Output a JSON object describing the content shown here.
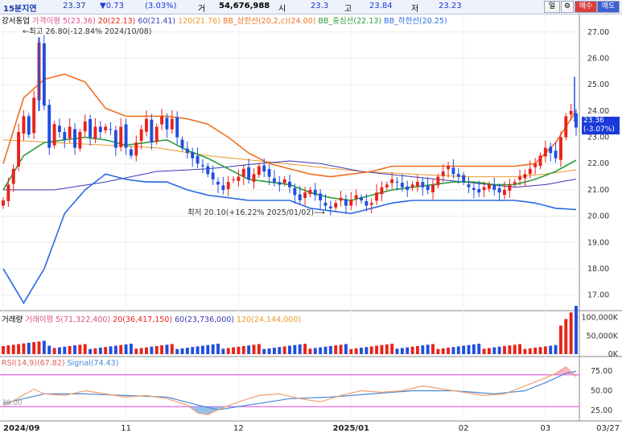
{
  "header": {
    "timeframe": "15분지연",
    "price": "23.37",
    "change": "▼0.73",
    "change_pct": "(3.03%)",
    "volume_label": "거",
    "volume": "54,676,988",
    "open_label": "시",
    "open": "23.3",
    "high_label": "고",
    "high": "23.84",
    "low_label": "저",
    "low": "23.23",
    "period_button": "일",
    "settings_icon": "gear-icon",
    "buy_button": "매수",
    "sell_button": "매도"
  },
  "price_legend": {
    "stock": "강서동업",
    "ma_group": "가격이평",
    "ma5": "5(23.36)",
    "ma20": "20(22.13)",
    "ma60": "60(21.41)",
    "ma120": "120(21.76)",
    "bb_upper": "BB_상한선(20,2,c)(24.00)",
    "bb_mid": "BB_중심선(22.13)",
    "bb_lower": "BB_하한선(20.25)"
  },
  "annotations": {
    "high": "최고 26.80(-12.84% 2024/10/08)",
    "low": "최저 20.10(+16.22% 2025/01/02)",
    "price_tag": "23.36",
    "price_tag_pct": "(-3.07%)"
  },
  "volume_legend": {
    "title": "거래량",
    "ma_group": "거래이평",
    "ma5": "5(71,322,400)",
    "ma20": "20(36,417,150)",
    "ma60": "60(23,736,000)",
    "ma120": "120(24,144,000)"
  },
  "rsi_legend": {
    "rsi": "RSI(14,9)(67.82)",
    "signal": "Signal(74.43)"
  },
  "axes": {
    "price_ticks": [
      "27.00",
      "26.00",
      "25.00",
      "24.00",
      "23.00",
      "22.00",
      "21.00",
      "20.00",
      "19.00",
      "18.00",
      "17.00"
    ],
    "volume_ticks": [
      "100,000K",
      "50,000K",
      "0K"
    ],
    "rsi_ticks": [
      "75.00",
      "50.00",
      "25.00"
    ],
    "rsi_left_label": "30.00",
    "x_labels": [
      "2024/09",
      "11",
      "12",
      "2025/01",
      "02",
      "03"
    ],
    "x_end": "03/27"
  },
  "colors": {
    "up": "#e8231a",
    "down": "#1f4fe0",
    "ma5": "#d94f8a",
    "ma20": "#2a9d3a",
    "ma60": "#3a3ab8",
    "ma120": "#e89a2a",
    "bb_upper": "#f07020",
    "bb_mid": "#2a9d3a",
    "bb_lower": "#2a6ae0",
    "rsi": "#f0a070",
    "signal": "#4a88d8"
  },
  "chart_data": [
    {
      "type": "candlestick",
      "title": "강서동업",
      "x_range": [
        "2024/09",
        "2025/03/27"
      ],
      "ylim": [
        16.5,
        27.3
      ],
      "ohlc_close_trace": [
        [
          0,
          20.6
        ],
        [
          2,
          21.8
        ],
        [
          3,
          23.2
        ],
        [
          4,
          23.8
        ],
        [
          5,
          23.1
        ],
        [
          6,
          24.5
        ],
        [
          7,
          26.6
        ],
        [
          8,
          24.2
        ],
        [
          9,
          22.6
        ],
        [
          10,
          23.5
        ],
        [
          11,
          23.2
        ],
        [
          12,
          22.9
        ],
        [
          13,
          23.4
        ],
        [
          14,
          22.6
        ],
        [
          15,
          23.2
        ],
        [
          16,
          23.6
        ],
        [
          17,
          23.0
        ],
        [
          18,
          23.4
        ],
        [
          19,
          23.2
        ],
        [
          20,
          23.4
        ],
        [
          21,
          23.3
        ],
        [
          22,
          22.6
        ],
        [
          23,
          23.4
        ],
        [
          24,
          22.6
        ],
        [
          25,
          22.3
        ],
        [
          26,
          22.8
        ],
        [
          27,
          23.3
        ],
        [
          28,
          23.7
        ],
        [
          29,
          22.8
        ],
        [
          30,
          23.4
        ],
        [
          31,
          23.8
        ],
        [
          32,
          23.3
        ],
        [
          33,
          23.7
        ],
        [
          34,
          23.0
        ],
        [
          35,
          22.6
        ],
        [
          36,
          22.4
        ],
        [
          37,
          22.2
        ],
        [
          38,
          22.0
        ],
        [
          39,
          21.9
        ],
        [
          40,
          21.6
        ],
        [
          41,
          21.4
        ],
        [
          42,
          21.2
        ],
        [
          43,
          21.0
        ],
        [
          44,
          21.3
        ],
        [
          45,
          21.4
        ],
        [
          46,
          21.5
        ],
        [
          47,
          21.8
        ],
        [
          48,
          21.4
        ],
        [
          49,
          21.6
        ],
        [
          50,
          21.9
        ],
        [
          51,
          21.7
        ],
        [
          52,
          21.5
        ],
        [
          53,
          21.3
        ],
        [
          54,
          21.2
        ],
        [
          55,
          21.4
        ],
        [
          56,
          21.1
        ],
        [
          57,
          20.8
        ],
        [
          58,
          20.6
        ],
        [
          59,
          20.9
        ],
        [
          60,
          21.0
        ],
        [
          61,
          20.8
        ],
        [
          62,
          20.6
        ],
        [
          63,
          20.4
        ],
        [
          64,
          20.3
        ],
        [
          65,
          20.5
        ],
        [
          66,
          20.7
        ],
        [
          67,
          20.4
        ],
        [
          68,
          20.6
        ],
        [
          69,
          20.8
        ],
        [
          70,
          20.6
        ],
        [
          71,
          20.4
        ],
        [
          72,
          20.5
        ],
        [
          73,
          20.9
        ],
        [
          74,
          21.1
        ],
        [
          75,
          21.2
        ],
        [
          76,
          21.4
        ],
        [
          77,
          21.3
        ],
        [
          78,
          21.1
        ],
        [
          79,
          21.0
        ],
        [
          80,
          21.2
        ],
        [
          81,
          21.3
        ],
        [
          82,
          21.1
        ],
        [
          83,
          21.0
        ],
        [
          84,
          21.2
        ],
        [
          85,
          21.5
        ],
        [
          86,
          21.7
        ],
        [
          87,
          21.9
        ],
        [
          88,
          21.6
        ],
        [
          89,
          21.5
        ],
        [
          90,
          21.3
        ],
        [
          91,
          21.1
        ],
        [
          92,
          21.0
        ],
        [
          93,
          20.9
        ],
        [
          94,
          21.1
        ],
        [
          95,
          21.2
        ],
        [
          96,
          21.0
        ],
        [
          97,
          20.9
        ],
        [
          98,
          21.0
        ],
        [
          99,
          21.2
        ],
        [
          100,
          21.3
        ],
        [
          101,
          21.5
        ],
        [
          102,
          21.6
        ],
        [
          103,
          21.8
        ],
        [
          104,
          22.0
        ],
        [
          105,
          22.3
        ],
        [
          106,
          22.6
        ],
        [
          107,
          22.4
        ],
        [
          108,
          22.2
        ],
        [
          109,
          23.0
        ],
        [
          110,
          23.8
        ],
        [
          111,
          24.0
        ],
        [
          112,
          23.37
        ]
      ],
      "bb_upper": [
        [
          0,
          22.0
        ],
        [
          4,
          24.5
        ],
        [
          8,
          25.2
        ],
        [
          12,
          25.4
        ],
        [
          16,
          25.1
        ],
        [
          20,
          24.1
        ],
        [
          24,
          23.8
        ],
        [
          28,
          23.8
        ],
        [
          32,
          23.8
        ],
        [
          36,
          23.7
        ],
        [
          40,
          23.5
        ],
        [
          44,
          23.0
        ],
        [
          48,
          22.4
        ],
        [
          52,
          22.0
        ],
        [
          56,
          21.8
        ],
        [
          60,
          21.6
        ],
        [
          64,
          21.5
        ],
        [
          68,
          21.6
        ],
        [
          72,
          21.7
        ],
        [
          76,
          21.9
        ],
        [
          80,
          21.9
        ],
        [
          84,
          21.9
        ],
        [
          88,
          21.9
        ],
        [
          92,
          21.9
        ],
        [
          96,
          21.9
        ],
        [
          100,
          21.9
        ],
        [
          104,
          22.0
        ],
        [
          108,
          22.8
        ],
        [
          112,
          24.0
        ]
      ],
      "bb_mid": [
        [
          0,
          21.0
        ],
        [
          4,
          22.3
        ],
        [
          8,
          22.8
        ],
        [
          12,
          22.9
        ],
        [
          16,
          23.0
        ],
        [
          20,
          22.9
        ],
        [
          24,
          22.7
        ],
        [
          28,
          22.8
        ],
        [
          32,
          22.9
        ],
        [
          36,
          22.5
        ],
        [
          40,
          22.2
        ],
        [
          44,
          21.8
        ],
        [
          48,
          21.4
        ],
        [
          52,
          21.3
        ],
        [
          56,
          21.2
        ],
        [
          60,
          20.9
        ],
        [
          64,
          20.7
        ],
        [
          68,
          20.6
        ],
        [
          72,
          20.8
        ],
        [
          76,
          21.0
        ],
        [
          80,
          21.1
        ],
        [
          84,
          21.2
        ],
        [
          88,
          21.3
        ],
        [
          92,
          21.3
        ],
        [
          96,
          21.2
        ],
        [
          100,
          21.2
        ],
        [
          104,
          21.4
        ],
        [
          108,
          21.7
        ],
        [
          112,
          22.13
        ]
      ],
      "bb_lower": [
        [
          0,
          18.0
        ],
        [
          4,
          16.7
        ],
        [
          8,
          18.0
        ],
        [
          12,
          20.1
        ],
        [
          16,
          21.0
        ],
        [
          20,
          21.6
        ],
        [
          24,
          21.4
        ],
        [
          28,
          21.3
        ],
        [
          32,
          21.3
        ],
        [
          36,
          21.0
        ],
        [
          40,
          20.8
        ],
        [
          44,
          20.7
        ],
        [
          48,
          20.6
        ],
        [
          52,
          20.6
        ],
        [
          56,
          20.6
        ],
        [
          60,
          20.3
        ],
        [
          64,
          20.2
        ],
        [
          68,
          20.1
        ],
        [
          72,
          20.3
        ],
        [
          76,
          20.5
        ],
        [
          80,
          20.6
        ],
        [
          84,
          20.6
        ],
        [
          88,
          20.6
        ],
        [
          92,
          20.6
        ],
        [
          96,
          20.6
        ],
        [
          100,
          20.6
        ],
        [
          104,
          20.5
        ],
        [
          108,
          20.3
        ],
        [
          112,
          20.25
        ]
      ],
      "ma60": [
        [
          0,
          21.0
        ],
        [
          10,
          21.0
        ],
        [
          20,
          21.3
        ],
        [
          30,
          21.7
        ],
        [
          40,
          21.8
        ],
        [
          50,
          22.0
        ],
        [
          56,
          22.1
        ],
        [
          62,
          22.0
        ],
        [
          70,
          21.7
        ],
        [
          80,
          21.5
        ],
        [
          90,
          21.3
        ],
        [
          100,
          21.1
        ],
        [
          106,
          21.2
        ],
        [
          112,
          21.41
        ]
      ],
      "ma120": [
        [
          0,
          22.9
        ],
        [
          10,
          22.8
        ],
        [
          20,
          22.7
        ],
        [
          30,
          22.6
        ],
        [
          40,
          22.3
        ],
        [
          50,
          22.1
        ],
        [
          60,
          21.9
        ],
        [
          70,
          21.7
        ],
        [
          80,
          21.6
        ],
        [
          90,
          21.5
        ],
        [
          100,
          21.5
        ],
        [
          106,
          21.6
        ],
        [
          112,
          21.76
        ]
      ]
    },
    {
      "type": "bar",
      "title": "거래량",
      "ylim": [
        0,
        110000000
      ],
      "ticks": [
        "100,000K",
        "50,000K",
        "0K"
      ]
    },
    {
      "type": "line",
      "title": "RSI",
      "ylim": [
        15,
        90
      ],
      "reference_lines": [
        70,
        30
      ],
      "rsi": [
        [
          0,
          30
        ],
        [
          6,
          52
        ],
        [
          8,
          46
        ],
        [
          12,
          44
        ],
        [
          16,
          50
        ],
        [
          20,
          46
        ],
        [
          24,
          42
        ],
        [
          28,
          44
        ],
        [
          32,
          40
        ],
        [
          36,
          32
        ],
        [
          38,
          22
        ],
        [
          40,
          20
        ],
        [
          42,
          26
        ],
        [
          46,
          36
        ],
        [
          50,
          44
        ],
        [
          54,
          46
        ],
        [
          58,
          40
        ],
        [
          62,
          36
        ],
        [
          66,
          44
        ],
        [
          70,
          50
        ],
        [
          74,
          48
        ],
        [
          78,
          50
        ],
        [
          82,
          56
        ],
        [
          86,
          52
        ],
        [
          90,
          48
        ],
        [
          94,
          44
        ],
        [
          98,
          46
        ],
        [
          102,
          56
        ],
        [
          106,
          66
        ],
        [
          108,
          72
        ],
        [
          110,
          80
        ],
        [
          112,
          67.82
        ]
      ],
      "signal": [
        [
          0,
          34
        ],
        [
          8,
          46
        ],
        [
          16,
          46
        ],
        [
          24,
          44
        ],
        [
          32,
          42
        ],
        [
          38,
          32
        ],
        [
          42,
          26
        ],
        [
          48,
          32
        ],
        [
          56,
          40
        ],
        [
          64,
          42
        ],
        [
          72,
          46
        ],
        [
          80,
          50
        ],
        [
          88,
          50
        ],
        [
          96,
          46
        ],
        [
          102,
          50
        ],
        [
          106,
          60
        ],
        [
          110,
          72
        ],
        [
          112,
          74.43
        ]
      ]
    }
  ]
}
